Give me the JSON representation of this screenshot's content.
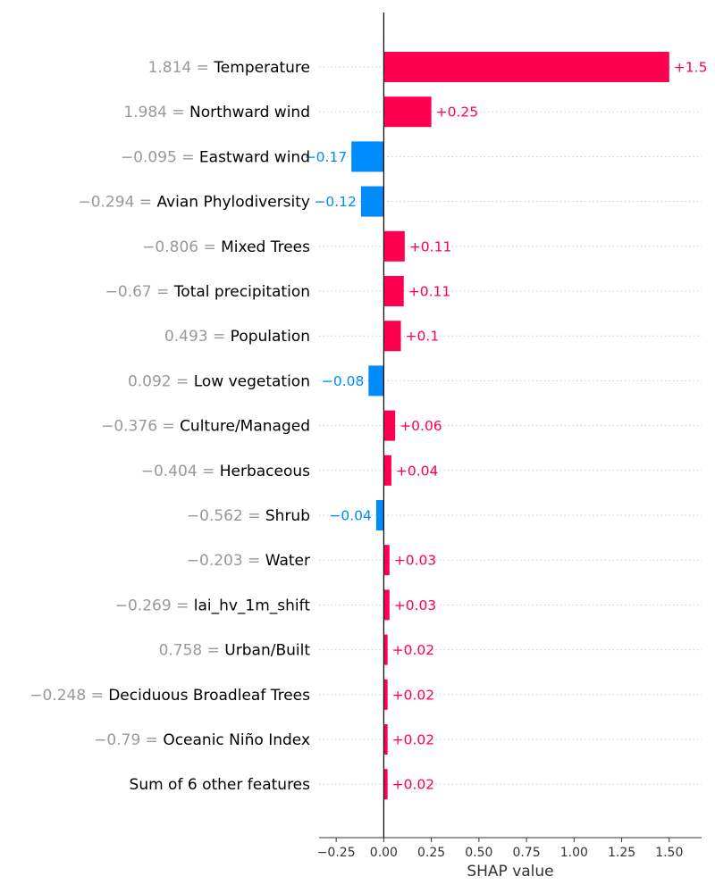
{
  "chart_data": {
    "type": "bar",
    "orientation": "horizontal",
    "xlabel": "SHAP value",
    "xlim": [
      -0.34,
      1.67
    ],
    "xticks": [
      -0.25,
      0.0,
      0.25,
      0.5,
      0.75,
      1.0,
      1.25,
      1.5
    ],
    "xtick_labels": [
      "−0.25",
      "0.00",
      "0.25",
      "0.50",
      "0.75",
      "1.00",
      "1.25",
      "1.50"
    ],
    "positive_color": "#ff0051",
    "negative_color": "#008bfb",
    "features": [
      {
        "value": "1.814",
        "name": "Temperature",
        "shap": 1.5,
        "label": "+1.5"
      },
      {
        "value": "1.984",
        "name": "Northward wind",
        "shap": 0.25,
        "label": "+0.25"
      },
      {
        "value": "−0.095",
        "name": "Eastward wind",
        "shap": -0.17,
        "label": "−0.17"
      },
      {
        "value": "−0.294",
        "name": "Avian Phylodiversity",
        "shap": -0.12,
        "label": "−0.12"
      },
      {
        "value": "−0.806",
        "name": "Mixed Trees",
        "shap": 0.11,
        "label": "+0.11"
      },
      {
        "value": "−0.67",
        "name": "Total precipitation",
        "shap": 0.105,
        "label": "+0.11"
      },
      {
        "value": "0.493",
        "name": "Population",
        "shap": 0.09,
        "label": "+0.1"
      },
      {
        "value": "0.092",
        "name": "Low vegetation",
        "shap": -0.08,
        "label": "−0.08"
      },
      {
        "value": "−0.376",
        "name": "Culture/Managed",
        "shap": 0.06,
        "label": "+0.06"
      },
      {
        "value": "−0.404",
        "name": "Herbaceous",
        "shap": 0.04,
        "label": "+0.04"
      },
      {
        "value": "−0.562",
        "name": "Shrub",
        "shap": -0.04,
        "label": "−0.04"
      },
      {
        "value": "−0.203",
        "name": "Water",
        "shap": 0.03,
        "label": "+0.03"
      },
      {
        "value": "−0.269",
        "name": "lai_hv_1m_shift",
        "shap": 0.03,
        "label": "+0.03"
      },
      {
        "value": "0.758",
        "name": "Urban/Built",
        "shap": 0.02,
        "label": "+0.02"
      },
      {
        "value": "−0.248",
        "name": "Deciduous Broadleaf Trees",
        "shap": 0.02,
        "label": "+0.02"
      },
      {
        "value": "−0.79",
        "name": "Oceanic Niño Index",
        "shap": 0.02,
        "label": "+0.02"
      },
      {
        "value": "",
        "name": "Sum of 6 other features",
        "shap": 0.02,
        "label": "+0.02"
      }
    ]
  }
}
